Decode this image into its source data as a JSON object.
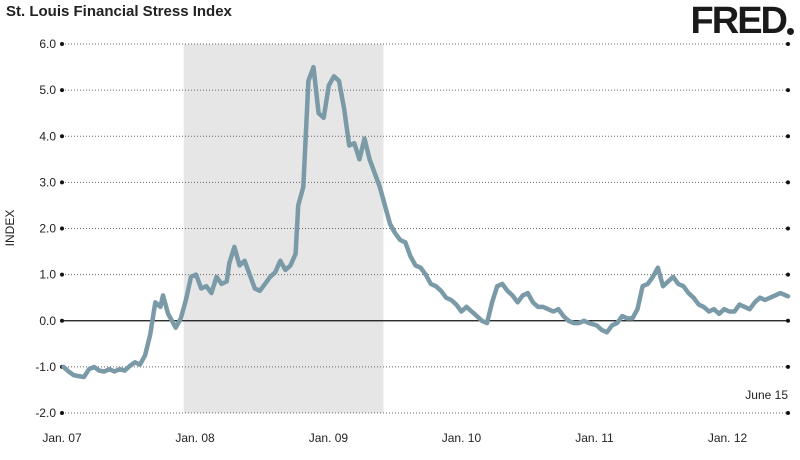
{
  "header": {
    "title": "St. Louis Financial Stress Index",
    "logo_text": "FRED"
  },
  "chart_data": {
    "type": "line",
    "title": "St. Louis Financial Stress Index",
    "xlabel": "",
    "ylabel": "INDEX",
    "ylim": [
      -2.0,
      6.0
    ],
    "xlim": [
      "2007-01-01",
      "2012-06-15"
    ],
    "y_ticks": [
      "6.0",
      "5.0",
      "4.0",
      "3.0",
      "2.0",
      "1.0",
      "0.0",
      "-1.0",
      "-2.0"
    ],
    "x_ticks": [
      {
        "label": "Jan. 07",
        "date": "2007-01-01"
      },
      {
        "label": "Jan. 08",
        "date": "2008-01-01"
      },
      {
        "label": "Jan. 09",
        "date": "2009-01-01"
      },
      {
        "label": "Jan. 10",
        "date": "2010-01-01"
      },
      {
        "label": "Jan. 11",
        "date": "2011-01-01"
      },
      {
        "label": "Jan. 12",
        "date": "2012-01-01"
      }
    ],
    "last_observation_label": "June 15",
    "grid": "horizontal dotted",
    "recession_shading": {
      "start": "2007-12-01",
      "end": "2009-06-01"
    },
    "series_color": "#7a9aa8",
    "series": [
      {
        "name": "",
        "points": [
          [
            "2007-01-05",
            -1.0
          ],
          [
            "2007-01-19",
            -1.1
          ],
          [
            "2007-02-02",
            -1.18
          ],
          [
            "2007-02-16",
            -1.2
          ],
          [
            "2007-03-02",
            -1.22
          ],
          [
            "2007-03-16",
            -1.05
          ],
          [
            "2007-03-30",
            -1.0
          ],
          [
            "2007-04-13",
            -1.08
          ],
          [
            "2007-04-27",
            -1.1
          ],
          [
            "2007-05-11",
            -1.05
          ],
          [
            "2007-05-25",
            -1.1
          ],
          [
            "2007-06-08",
            -1.05
          ],
          [
            "2007-06-22",
            -1.08
          ],
          [
            "2007-07-06",
            -0.98
          ],
          [
            "2007-07-20",
            -0.9
          ],
          [
            "2007-08-03",
            -0.95
          ],
          [
            "2007-08-17",
            -0.75
          ],
          [
            "2007-08-31",
            -0.3
          ],
          [
            "2007-09-14",
            0.4
          ],
          [
            "2007-09-28",
            0.3
          ],
          [
            "2007-10-05",
            0.55
          ],
          [
            "2007-10-19",
            0.15
          ],
          [
            "2007-11-02",
            -0.05
          ],
          [
            "2007-11-09",
            -0.15
          ],
          [
            "2007-11-23",
            0.05
          ],
          [
            "2007-12-07",
            0.45
          ],
          [
            "2007-12-21",
            0.95
          ],
          [
            "2008-01-04",
            1.0
          ],
          [
            "2008-01-18",
            0.7
          ],
          [
            "2008-02-01",
            0.75
          ],
          [
            "2008-02-15",
            0.6
          ],
          [
            "2008-02-29",
            0.95
          ],
          [
            "2008-03-14",
            0.8
          ],
          [
            "2008-03-28",
            0.85
          ],
          [
            "2008-04-04",
            1.25
          ],
          [
            "2008-04-18",
            1.6
          ],
          [
            "2008-05-02",
            1.2
          ],
          [
            "2008-05-16",
            1.3
          ],
          [
            "2008-05-30",
            1.0
          ],
          [
            "2008-06-13",
            0.7
          ],
          [
            "2008-06-27",
            0.65
          ],
          [
            "2008-07-11",
            0.8
          ],
          [
            "2008-07-25",
            0.95
          ],
          [
            "2008-08-08",
            1.05
          ],
          [
            "2008-08-22",
            1.3
          ],
          [
            "2008-09-05",
            1.1
          ],
          [
            "2008-09-19",
            1.2
          ],
          [
            "2008-10-03",
            1.45
          ],
          [
            "2008-10-10",
            2.5
          ],
          [
            "2008-10-24",
            2.9
          ],
          [
            "2008-11-07",
            5.2
          ],
          [
            "2008-11-21",
            5.5
          ],
          [
            "2008-12-05",
            4.5
          ],
          [
            "2008-12-19",
            4.4
          ],
          [
            "2009-01-02",
            5.1
          ],
          [
            "2009-01-16",
            5.3
          ],
          [
            "2009-01-30",
            5.2
          ],
          [
            "2009-02-13",
            4.6
          ],
          [
            "2009-02-27",
            3.8
          ],
          [
            "2009-03-13",
            3.85
          ],
          [
            "2009-03-27",
            3.5
          ],
          [
            "2009-04-10",
            3.95
          ],
          [
            "2009-04-24",
            3.5
          ],
          [
            "2009-05-08",
            3.2
          ],
          [
            "2009-05-22",
            2.9
          ],
          [
            "2009-06-05",
            2.5
          ],
          [
            "2009-06-19",
            2.1
          ],
          [
            "2009-07-03",
            1.9
          ],
          [
            "2009-07-17",
            1.75
          ],
          [
            "2009-07-31",
            1.7
          ],
          [
            "2009-08-14",
            1.4
          ],
          [
            "2009-08-28",
            1.2
          ],
          [
            "2009-09-11",
            1.15
          ],
          [
            "2009-09-25",
            1.0
          ],
          [
            "2009-10-09",
            0.8
          ],
          [
            "2009-10-23",
            0.75
          ],
          [
            "2009-11-06",
            0.65
          ],
          [
            "2009-11-20",
            0.5
          ],
          [
            "2009-12-04",
            0.45
          ],
          [
            "2009-12-18",
            0.35
          ],
          [
            "2010-01-01",
            0.2
          ],
          [
            "2010-01-15",
            0.3
          ],
          [
            "2010-01-29",
            0.2
          ],
          [
            "2010-02-12",
            0.1
          ],
          [
            "2010-02-26",
            0.0
          ],
          [
            "2010-03-12",
            -0.05
          ],
          [
            "2010-03-26",
            0.4
          ],
          [
            "2010-04-09",
            0.75
          ],
          [
            "2010-04-23",
            0.8
          ],
          [
            "2010-05-07",
            0.65
          ],
          [
            "2010-05-21",
            0.55
          ],
          [
            "2010-06-04",
            0.4
          ],
          [
            "2010-06-18",
            0.55
          ],
          [
            "2010-07-02",
            0.6
          ],
          [
            "2010-07-16",
            0.4
          ],
          [
            "2010-07-30",
            0.3
          ],
          [
            "2010-08-13",
            0.3
          ],
          [
            "2010-08-27",
            0.25
          ],
          [
            "2010-09-10",
            0.2
          ],
          [
            "2010-09-24",
            0.25
          ],
          [
            "2010-10-08",
            0.1
          ],
          [
            "2010-10-22",
            0.0
          ],
          [
            "2010-11-05",
            -0.05
          ],
          [
            "2010-11-19",
            -0.05
          ],
          [
            "2010-12-03",
            0.0
          ],
          [
            "2010-12-17",
            -0.05
          ],
          [
            "2011-01-07",
            -0.1
          ],
          [
            "2011-01-21",
            -0.2
          ],
          [
            "2011-02-04",
            -0.25
          ],
          [
            "2011-02-18",
            -0.1
          ],
          [
            "2011-03-04",
            -0.05
          ],
          [
            "2011-03-18",
            0.1
          ],
          [
            "2011-04-01",
            0.05
          ],
          [
            "2011-04-15",
            0.05
          ],
          [
            "2011-04-29",
            0.25
          ],
          [
            "2011-05-13",
            0.75
          ],
          [
            "2011-05-27",
            0.8
          ],
          [
            "2011-06-10",
            0.95
          ],
          [
            "2011-06-24",
            1.15
          ],
          [
            "2011-07-08",
            0.75
          ],
          [
            "2011-07-22",
            0.85
          ],
          [
            "2011-08-05",
            0.95
          ],
          [
            "2011-08-19",
            0.8
          ],
          [
            "2011-09-02",
            0.75
          ],
          [
            "2011-09-16",
            0.6
          ],
          [
            "2011-09-30",
            0.5
          ],
          [
            "2011-10-14",
            0.35
          ],
          [
            "2011-10-28",
            0.3
          ],
          [
            "2011-11-11",
            0.2
          ],
          [
            "2011-11-25",
            0.25
          ],
          [
            "2011-12-09",
            0.15
          ],
          [
            "2011-12-23",
            0.25
          ],
          [
            "2012-01-06",
            0.2
          ],
          [
            "2012-01-20",
            0.2
          ],
          [
            "2012-02-03",
            0.35
          ],
          [
            "2012-02-17",
            0.3
          ],
          [
            "2012-03-02",
            0.25
          ],
          [
            "2012-03-16",
            0.4
          ],
          [
            "2012-03-30",
            0.5
          ],
          [
            "2012-04-13",
            0.45
          ],
          [
            "2012-04-27",
            0.5
          ],
          [
            "2012-05-11",
            0.55
          ],
          [
            "2012-05-25",
            0.6
          ],
          [
            "2012-06-15",
            0.53
          ]
        ]
      }
    ]
  }
}
